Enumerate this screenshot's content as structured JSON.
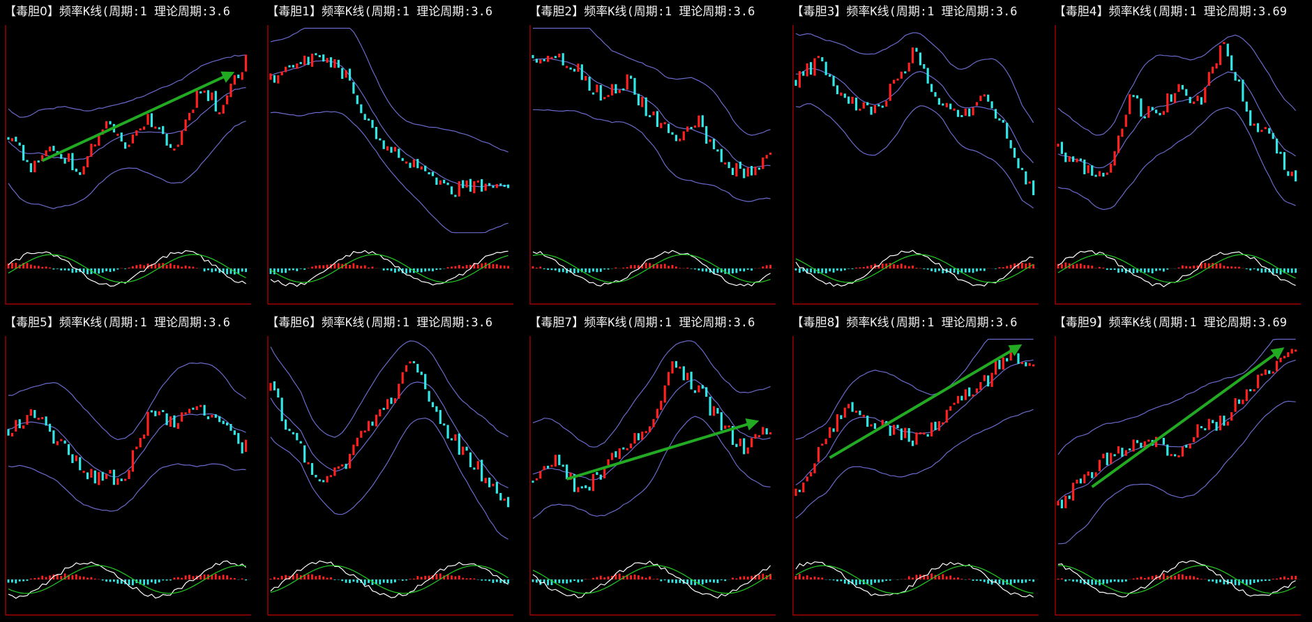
{
  "panels": [
    {
      "tag": "【毒胆0】",
      "text": "频率K线(周期:1 理论周期:3.6",
      "seed": 11,
      "trend": [
        0.55,
        0.7,
        0.62,
        0.72,
        0.48,
        0.58,
        0.45,
        0.6,
        0.3,
        0.4,
        0.15
      ],
      "arrow": true
    },
    {
      "tag": "【毒胆1】",
      "text": "频率K线(周期:1 理论周期:3.6",
      "seed": 23,
      "trend": [
        0.25,
        0.15,
        0.12,
        0.2,
        0.45,
        0.62,
        0.7,
        0.78,
        0.82,
        0.8,
        0.78
      ],
      "arrow": false
    },
    {
      "tag": "【毒胆2】",
      "text": "频率K线(周期:1 理论周期:3.6",
      "seed": 37,
      "trend": [
        0.12,
        0.1,
        0.22,
        0.35,
        0.25,
        0.45,
        0.55,
        0.48,
        0.7,
        0.75,
        0.62
      ],
      "arrow": false
    },
    {
      "tag": "【毒胆3】",
      "text": "频率K线(周期:1 理论周期:3.6",
      "seed": 41,
      "trend": [
        0.25,
        0.15,
        0.35,
        0.42,
        0.3,
        0.1,
        0.35,
        0.45,
        0.3,
        0.6,
        0.85
      ],
      "arrow": false
    },
    {
      "tag": "【毒胆4】",
      "text": "频率K线(周期:1 理论周期:3.69",
      "seed": 53,
      "trend": [
        0.6,
        0.72,
        0.78,
        0.35,
        0.45,
        0.3,
        0.35,
        0.05,
        0.45,
        0.55,
        0.8
      ],
      "arrow": false
    },
    {
      "tag": "【毒胆5】",
      "text": "频率K线(周期:1 理论周期:3.6",
      "seed": 67,
      "trend": [
        0.45,
        0.38,
        0.5,
        0.65,
        0.72,
        0.68,
        0.35,
        0.42,
        0.3,
        0.45,
        0.55
      ],
      "arrow": false
    },
    {
      "tag": "【毒胆6】",
      "text": "频率K线(周期:1 理论周期:3.6",
      "seed": 71,
      "trend": [
        0.25,
        0.5,
        0.75,
        0.65,
        0.45,
        0.3,
        0.08,
        0.4,
        0.55,
        0.7,
        0.82
      ],
      "arrow": false
    },
    {
      "tag": "【毒胆7】",
      "text": "频率K线(周期:1 理论周期:3.6",
      "seed": 83,
      "trend": [
        0.72,
        0.6,
        0.8,
        0.65,
        0.55,
        0.4,
        0.1,
        0.25,
        0.45,
        0.55,
        0.45
      ],
      "arrow": true
    },
    {
      "tag": "【毒胆8】",
      "text": "频率K线(周期:1 理论周期:3.6",
      "seed": 97,
      "trend": [
        0.8,
        0.55,
        0.35,
        0.4,
        0.45,
        0.5,
        0.42,
        0.3,
        0.2,
        0.05,
        0.12
      ],
      "arrow": true
    },
    {
      "tag": "【毒胆9】",
      "text": "频率K线(周期:1 理论周期:3.69",
      "seed": 101,
      "trend": [
        0.85,
        0.72,
        0.6,
        0.55,
        0.5,
        0.6,
        0.45,
        0.4,
        0.25,
        0.15,
        0.05
      ],
      "arrow": true
    }
  ],
  "colors": {
    "background": "#000000",
    "axis": "#c00000",
    "up_candle": "#ff2020",
    "down_candle": "#33e6e6",
    "band": "#6a6acc",
    "arrow": "#22aa22",
    "macd_dif": "#ffffff",
    "macd_dea": "#22cc22"
  },
  "chart_data": {
    "type": "candlestick",
    "panel_count": 10,
    "layout": "2 rows x 5 columns"
  }
}
